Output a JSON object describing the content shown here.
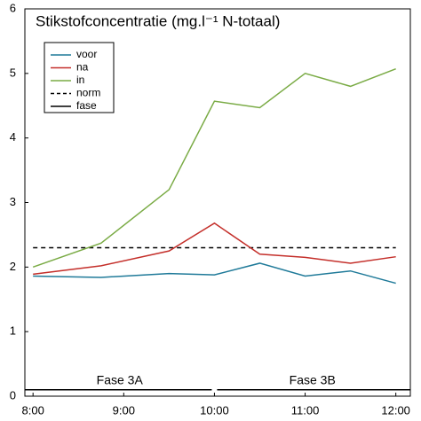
{
  "chart_data": {
    "type": "line",
    "title": "Stikstofconcentratie (mg.l⁻¹ N-totaal)",
    "x": [
      8,
      8.75,
      9.5,
      10,
      10.5,
      11,
      11.5,
      12
    ],
    "series": [
      {
        "name": "voor",
        "color": "#1f7a99",
        "values": [
          1.86,
          1.84,
          1.9,
          1.88,
          2.06,
          1.86,
          1.94,
          1.75
        ]
      },
      {
        "name": "na",
        "color": "#c42f2a",
        "values": [
          1.89,
          2.02,
          2.25,
          2.68,
          2.2,
          2.15,
          2.06,
          2.16
        ]
      },
      {
        "name": "in",
        "color": "#7aab45",
        "values": [
          2.0,
          2.37,
          3.2,
          4.57,
          4.47,
          5.0,
          4.8,
          5.07
        ]
      }
    ],
    "norm": {
      "name": "norm",
      "color": "#000000",
      "value": 2.3,
      "x": [
        8,
        12
      ]
    },
    "fase": {
      "name": "fase",
      "color": "#000000",
      "value": 0.1,
      "phases": [
        {
          "label": "Fase 3A",
          "x": [
            7.91,
            10
          ]
        },
        {
          "label": "Fase 3B",
          "x": [
            10,
            12.16
          ]
        }
      ]
    },
    "xlim": [
      7.91,
      12.16
    ],
    "xticks": [
      {
        "value": 8,
        "label": "8:00"
      },
      {
        "value": 9,
        "label": "9:00"
      },
      {
        "value": 10,
        "label": "10:00"
      },
      {
        "value": 11,
        "label": "11:00"
      },
      {
        "value": 12,
        "label": "12:00"
      }
    ],
    "ylim": [
      0,
      6
    ],
    "yticks": [
      0,
      1,
      2,
      3,
      4,
      5,
      6
    ],
    "legend": "upper left"
  }
}
